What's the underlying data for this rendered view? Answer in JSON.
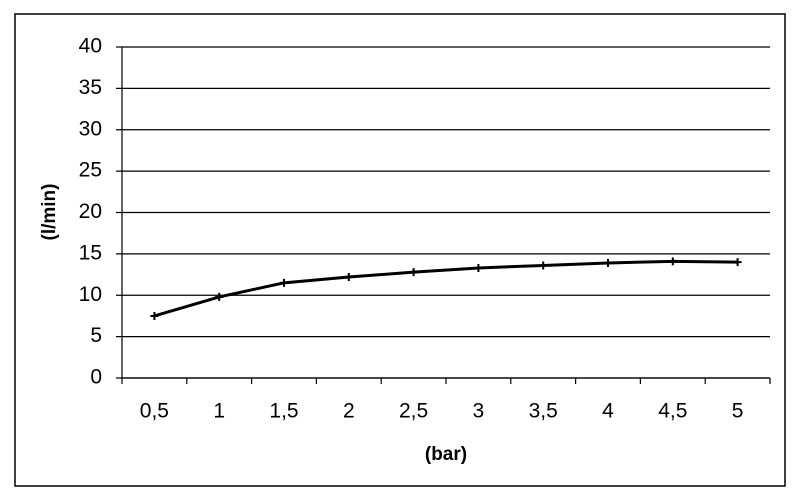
{
  "chart_data": {
    "type": "line",
    "x_label": "(bar)",
    "y_label": "(l/min)",
    "categories": [
      "0,5",
      "1",
      "1,5",
      "2",
      "2,5",
      "3",
      "3,5",
      "4",
      "4,5",
      "5"
    ],
    "series": [
      {
        "color": "#000000",
        "values": [
          7.5,
          9.8,
          11.5,
          12.2,
          12.8,
          13.3,
          13.6,
          13.9,
          14.1,
          14.0
        ]
      }
    ],
    "ylim": [
      0,
      40
    ],
    "yticks": [
      0,
      5,
      10,
      15,
      20,
      25,
      30,
      35,
      40
    ],
    "grid": true
  }
}
